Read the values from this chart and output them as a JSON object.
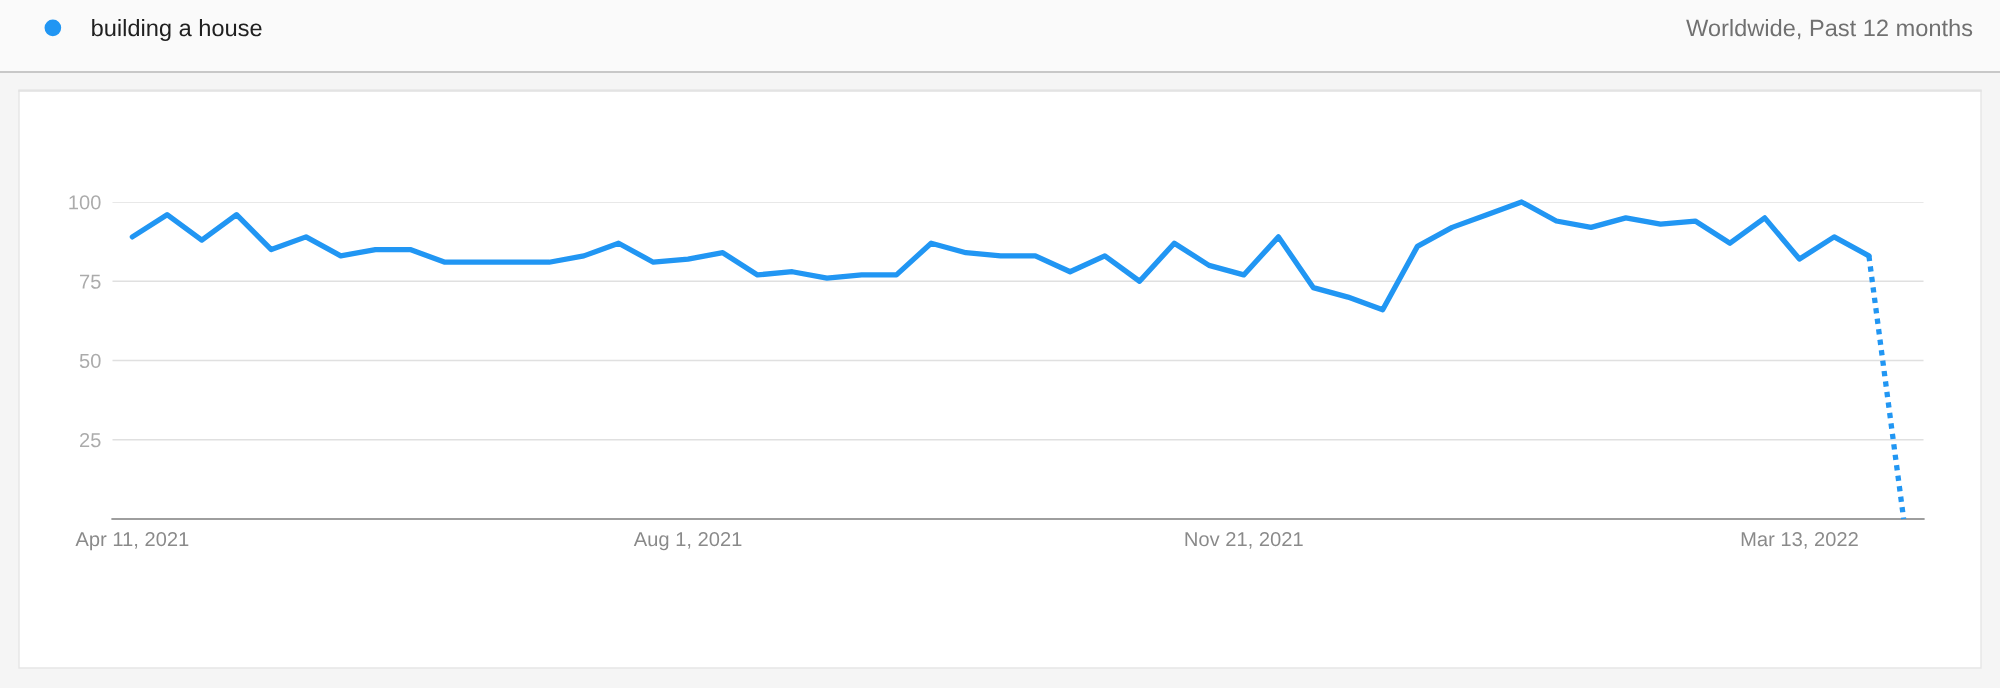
{
  "chart_data": {
    "type": "line",
    "subtitle": "Worldwide, Past 12 months",
    "series": [
      {
        "name": "building a house",
        "color": "#2196f3",
        "line_style": "solid",
        "x": [
          "2021-04-11",
          "2021-04-18",
          "2021-04-25",
          "2021-05-02",
          "2021-05-09",
          "2021-05-16",
          "2021-05-23",
          "2021-05-30",
          "2021-06-06",
          "2021-06-13",
          "2021-06-20",
          "2021-06-27",
          "2021-07-04",
          "2021-07-11",
          "2021-07-18",
          "2021-07-25",
          "2021-08-01",
          "2021-08-08",
          "2021-08-15",
          "2021-08-22",
          "2021-08-29",
          "2021-09-05",
          "2021-09-12",
          "2021-09-19",
          "2021-09-26",
          "2021-10-03",
          "2021-10-10",
          "2021-10-17",
          "2021-10-24",
          "2021-10-31",
          "2021-11-07",
          "2021-11-14",
          "2021-11-21",
          "2021-11-28",
          "2021-12-05",
          "2021-12-12",
          "2021-12-19",
          "2021-12-26",
          "2022-01-02",
          "2022-01-09",
          "2022-01-16",
          "2022-01-23",
          "2022-01-30",
          "2022-02-06",
          "2022-02-13",
          "2022-02-20",
          "2022-02-27",
          "2022-03-06",
          "2022-03-13",
          "2022-03-20",
          "2022-03-27"
        ],
        "values": [
          89,
          96,
          88,
          96,
          85,
          89,
          83,
          85,
          85,
          81,
          81,
          81,
          81,
          83,
          87,
          81,
          82,
          84,
          77,
          78,
          76,
          77,
          77,
          87,
          84,
          83,
          83,
          78,
          83,
          75,
          87,
          80,
          77,
          89,
          73,
          70,
          66,
          86,
          92,
          96,
          100,
          94,
          92,
          95,
          93,
          94,
          87,
          95,
          82,
          89,
          83
        ]
      },
      {
        "color": "#2196f3",
        "line_style": "dotted",
        "x": [
          "2022-03-27",
          "2022-04-03"
        ],
        "values": [
          83,
          0
        ]
      }
    ],
    "xlim": [
      "2021-04-07",
      "2022-04-07"
    ],
    "xticks": [
      {
        "value": "2021-04-11",
        "label": "Apr 11, 2021"
      },
      {
        "value": "2021-08-01",
        "label": "Aug 1, 2021"
      },
      {
        "value": "2021-11-21",
        "label": "Nov 21, 2021"
      },
      {
        "value": "2022-03-13",
        "label": "Mar 13, 2022"
      }
    ],
    "ylim": [
      0,
      100
    ],
    "yticks": [
      25,
      50,
      75,
      100
    ],
    "grid": "y",
    "legend": "top left"
  }
}
